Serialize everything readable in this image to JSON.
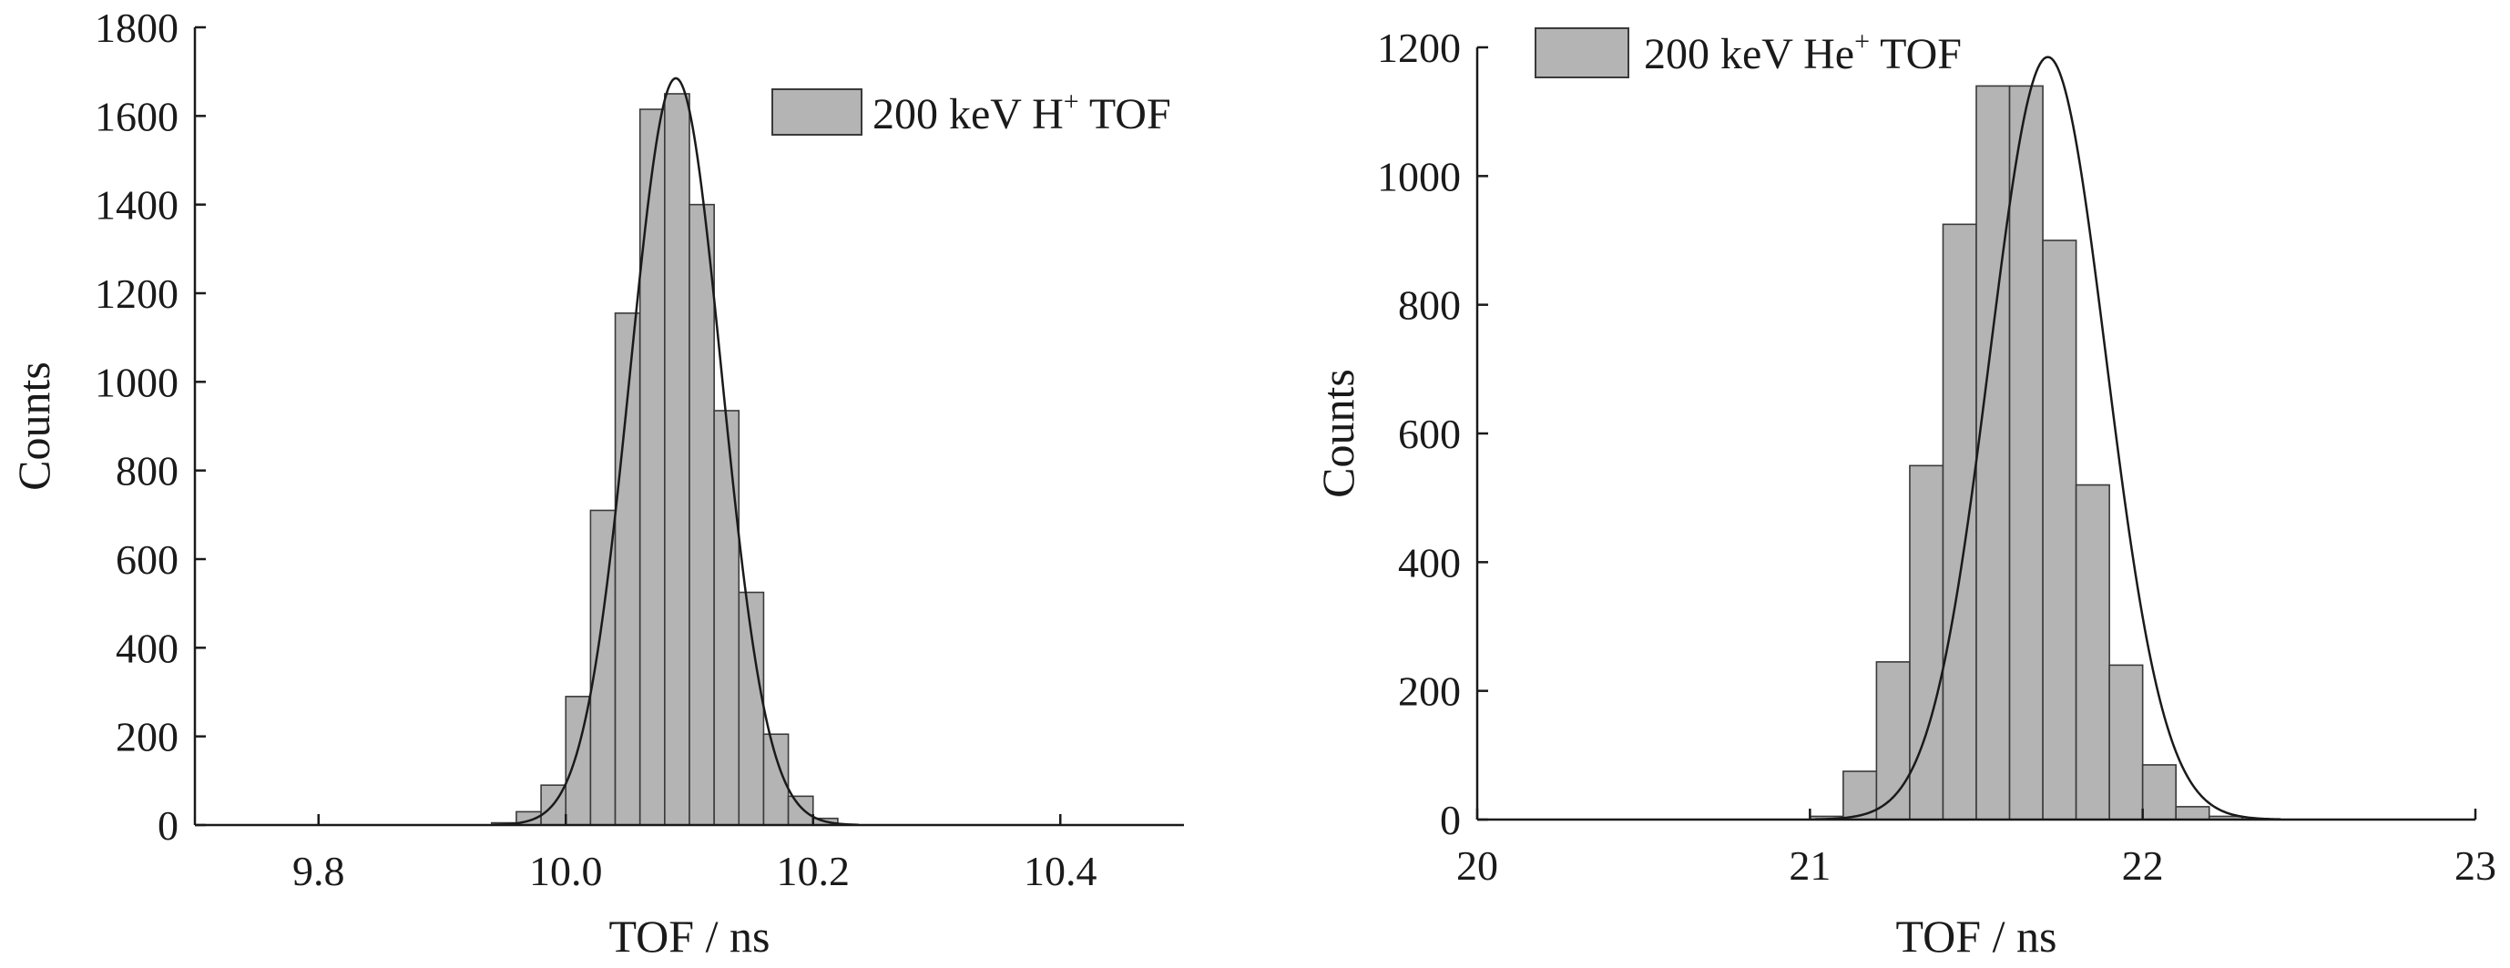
{
  "colors": {
    "bar_fill": "#b4b4b4",
    "bar_stroke": "#3a3a3a",
    "axis": "#1a1a1a",
    "fit_line": "#1a1a1a"
  },
  "chart_data": [
    {
      "type": "bar",
      "legend": {
        "main": "200 keV H",
        "sup": "+",
        "tail": " TOF",
        "placement": "top-right"
      },
      "xlabel": "TOF / ns",
      "ylabel": "Counts",
      "xlim": [
        9.7,
        10.5
      ],
      "ylim": [
        0,
        1800
      ],
      "xticks": [
        9.8,
        10.0,
        10.2,
        10.4
      ],
      "xtick_labels": [
        "9.8",
        "10.0",
        "10.2",
        "10.4"
      ],
      "yticks": [
        0,
        200,
        400,
        600,
        800,
        1000,
        1200,
        1400,
        1600,
        1800
      ],
      "ytick_labels": [
        "0",
        "200",
        "400",
        "600",
        "800",
        "1000",
        "1200",
        "1400",
        "1600",
        "1800"
      ],
      "bin_width": 0.02,
      "bin_centers": [
        9.95,
        9.97,
        9.99,
        10.01,
        10.03,
        10.05,
        10.07,
        10.09,
        10.11,
        10.13,
        10.15,
        10.17,
        10.19,
        10.21
      ],
      "values": [
        5,
        30,
        90,
        290,
        710,
        1155,
        1615,
        1650,
        1400,
        935,
        525,
        205,
        65,
        15
      ],
      "fit": {
        "type": "gaussian",
        "amplitude": 1685,
        "mean": 10.089,
        "sigma": 0.037
      },
      "grid": false
    },
    {
      "type": "bar",
      "legend": {
        "main": "200 keV He",
        "sup": "+",
        "tail": " TOF",
        "placement": "top-left"
      },
      "xlabel": "TOF / ns",
      "ylabel": "Counts",
      "xlim": [
        20,
        23
      ],
      "ylim": [
        0,
        1200
      ],
      "xticks": [
        20,
        21,
        22,
        23
      ],
      "xtick_labels": [
        "20",
        "21",
        "22",
        "23"
      ],
      "yticks": [
        0,
        200,
        400,
        600,
        800,
        1000,
        1200
      ],
      "ytick_labels": [
        "0",
        "200",
        "400",
        "600",
        "800",
        "1000",
        "1200"
      ],
      "bin_width": 0.1,
      "bin_centers": [
        21.05,
        21.15,
        21.25,
        21.35,
        21.45,
        21.55,
        21.65,
        21.75,
        21.85,
        21.95,
        22.05,
        22.15,
        22.25
      ],
      "values": [
        5,
        75,
        245,
        550,
        925,
        1140,
        1140,
        900,
        520,
        240,
        85,
        20,
        5
      ],
      "fit": {
        "type": "gaussian",
        "amplitude": 1185,
        "mean": 21.715,
        "sigma": 0.175
      },
      "grid": false
    }
  ]
}
